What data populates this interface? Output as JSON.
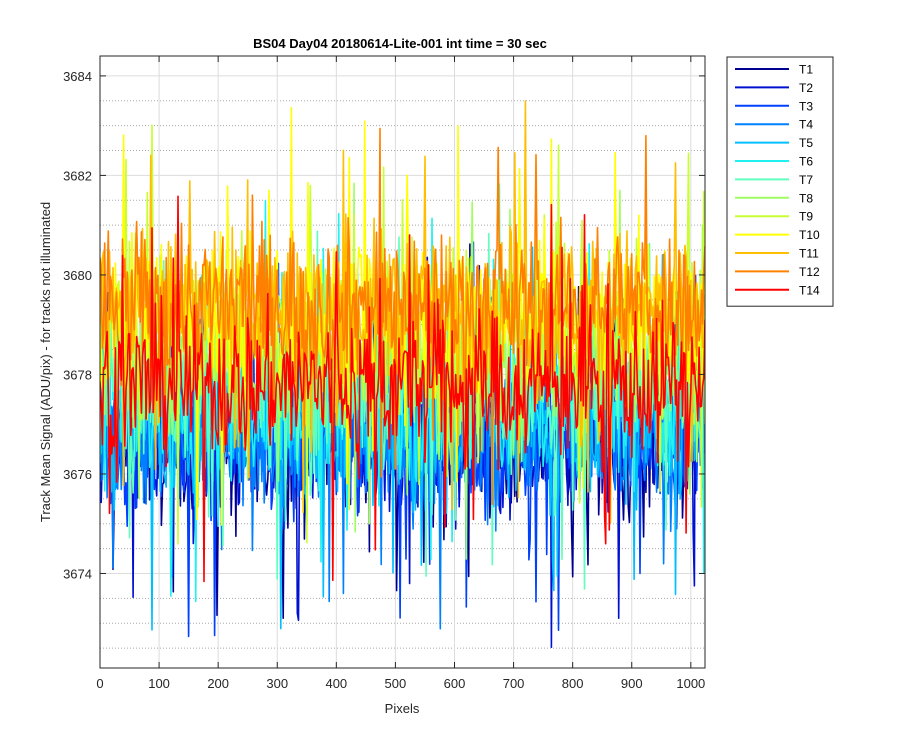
{
  "chart_data": {
    "type": "line",
    "title": "BS04 Day04 20180614-Lite-001 int time = 30 sec",
    "xlabel": "Pixels",
    "ylabel": "Track Mean Signal (ADU/pix) - for tracks not illuminated",
    "xlim": [
      0,
      1024
    ],
    "ylim": [
      3672.1,
      3684.4
    ],
    "xticks": [
      0,
      100,
      200,
      300,
      400,
      500,
      600,
      700,
      800,
      900,
      1000
    ],
    "yticks": [
      3674,
      3676,
      3678,
      3680,
      3682,
      3684
    ],
    "ytick_labels": [
      "3674",
      "3676",
      "3678",
      "3680",
      "3682",
      "3684"
    ],
    "xtick_labels": [
      "0",
      "100",
      "200",
      "300",
      "400",
      "500",
      "600",
      "700",
      "800",
      "900",
      "1000"
    ],
    "minor_y_gridlines": [
      3672.5,
      3673,
      3673.5,
      3674.5,
      3675,
      3675.5,
      3676.5,
      3677,
      3677.5,
      3678.5,
      3679,
      3679.5,
      3680.5,
      3681,
      3681.5,
      3682.5,
      3683,
      3683.5
    ],
    "grid": true,
    "legend_position": "outside top-right",
    "series": [
      {
        "name": "T1",
        "color": "#000090",
        "mean": 3676.6,
        "amplitude": 2.3
      },
      {
        "name": "T2",
        "color": "#0010d0",
        "mean": 3676.7,
        "amplitude": 2.3
      },
      {
        "name": "T3",
        "color": "#0040ff",
        "mean": 3676.8,
        "amplitude": 2.3
      },
      {
        "name": "T4",
        "color": "#0080ff",
        "mean": 3676.9,
        "amplitude": 2.4
      },
      {
        "name": "T5",
        "color": "#00bfff",
        "mean": 3677.0,
        "amplitude": 2.4
      },
      {
        "name": "T6",
        "color": "#20f0f0",
        "mean": 3677.4,
        "amplitude": 2.4
      },
      {
        "name": "T7",
        "color": "#60ffbf",
        "mean": 3677.8,
        "amplitude": 2.4
      },
      {
        "name": "T8",
        "color": "#9fff60",
        "mean": 3678.3,
        "amplitude": 2.4
      },
      {
        "name": "T9",
        "color": "#c8ff30",
        "mean": 3678.9,
        "amplitude": 2.5
      },
      {
        "name": "T10",
        "color": "#ffff00",
        "mean": 3679.1,
        "amplitude": 2.5
      },
      {
        "name": "T11",
        "color": "#ffbf00",
        "mean": 3679.3,
        "amplitude": 2.5
      },
      {
        "name": "T12",
        "color": "#ff8000",
        "mean": 3679.4,
        "amplitude": 2.4
      },
      {
        "name": "T14",
        "color": "#ff0000",
        "mean": 3677.8,
        "amplitude": 2.3
      }
    ]
  }
}
